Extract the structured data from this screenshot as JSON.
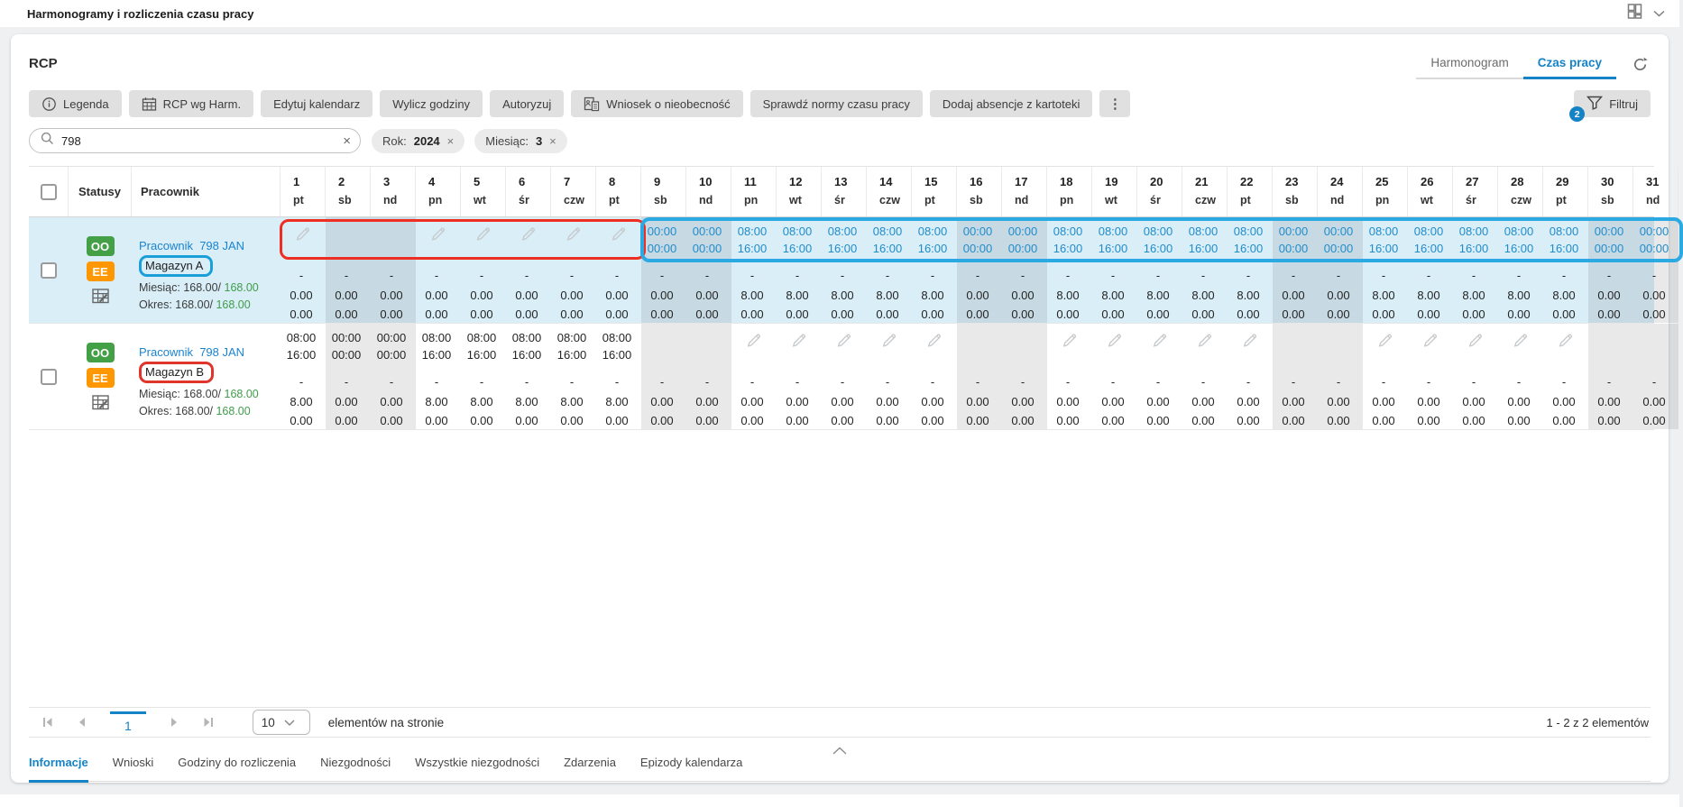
{
  "app": {
    "title": "Harmonogramy i rozliczenia czasu pracy"
  },
  "colors": {
    "accent": "#1583c5",
    "link": "#1b84d0",
    "time_blue": "#1f8ccc",
    "green": "#3f9c4b",
    "badge_oo": "#43a047",
    "badge_ee": "#ff9800",
    "annotation_red": "#ee2e22",
    "annotation_cyan": "#2aa9e2",
    "selected_row": "#d9eef7"
  },
  "icons": {
    "topbar_right": [
      "layout-grid-icon",
      "chevron-down-icon"
    ],
    "toolbar": [
      "info-icon",
      "calendar-icon",
      "absence-request-icon",
      "more-vertical-icon",
      "funnel-icon"
    ],
    "misc": [
      "refresh-icon",
      "search-icon",
      "clear-icon",
      "pencil-icon",
      "calendar-edit-icon",
      "collapse-chevron-icon"
    ]
  },
  "panel": {
    "title": "RCP",
    "view_tabs": [
      {
        "label": "Harmonogram",
        "active": false
      },
      {
        "label": "Czas pracy",
        "active": true
      }
    ],
    "toolbar": {
      "buttons": [
        {
          "label": "Legenda",
          "icon": "info-icon"
        },
        {
          "label": "RCP wg Harm.",
          "icon": "calendar-icon"
        },
        {
          "label": "Edytuj kalendarz"
        },
        {
          "label": "Wylicz godziny"
        },
        {
          "label": "Autoryzuj"
        },
        {
          "label": "Wniosek o nieobecność",
          "icon": "absence-request-icon"
        },
        {
          "label": "Sprawdź normy czasu pracy"
        },
        {
          "label": "Dodaj absencje z kartoteki"
        }
      ],
      "more": "⋮",
      "filter": {
        "label": "Filtruj",
        "badge": "2"
      }
    },
    "search": {
      "value": "798"
    },
    "filter_chips": [
      {
        "label": "Rok:",
        "value": "2024"
      },
      {
        "label": "Miesiąc:",
        "value": "3"
      }
    ]
  },
  "table": {
    "headers": {
      "statuses": "Statusy",
      "employee": "Pracownik"
    },
    "cell_dash": "-",
    "cell_bottom": "0.00",
    "days": [
      {
        "num": "1",
        "dow": "pt",
        "weekend": false
      },
      {
        "num": "2",
        "dow": "sb",
        "weekend": true
      },
      {
        "num": "3",
        "dow": "nd",
        "weekend": true
      },
      {
        "num": "4",
        "dow": "pn",
        "weekend": false
      },
      {
        "num": "5",
        "dow": "wt",
        "weekend": false
      },
      {
        "num": "6",
        "dow": "śr",
        "weekend": false
      },
      {
        "num": "7",
        "dow": "czw",
        "weekend": false
      },
      {
        "num": "8",
        "dow": "pt",
        "weekend": false
      },
      {
        "num": "9",
        "dow": "sb",
        "weekend": true
      },
      {
        "num": "10",
        "dow": "nd",
        "weekend": true
      },
      {
        "num": "11",
        "dow": "pn",
        "weekend": false
      },
      {
        "num": "12",
        "dow": "wt",
        "weekend": false
      },
      {
        "num": "13",
        "dow": "śr",
        "weekend": false
      },
      {
        "num": "14",
        "dow": "czw",
        "weekend": false
      },
      {
        "num": "15",
        "dow": "pt",
        "weekend": false
      },
      {
        "num": "16",
        "dow": "sb",
        "weekend": true
      },
      {
        "num": "17",
        "dow": "nd",
        "weekend": true
      },
      {
        "num": "18",
        "dow": "pn",
        "weekend": false
      },
      {
        "num": "19",
        "dow": "wt",
        "weekend": false
      },
      {
        "num": "20",
        "dow": "śr",
        "weekend": false
      },
      {
        "num": "21",
        "dow": "czw",
        "weekend": false
      },
      {
        "num": "22",
        "dow": "pt",
        "weekend": false
      },
      {
        "num": "23",
        "dow": "sb",
        "weekend": true
      },
      {
        "num": "24",
        "dow": "nd",
        "weekend": true
      },
      {
        "num": "25",
        "dow": "pn",
        "weekend": false
      },
      {
        "num": "26",
        "dow": "wt",
        "weekend": false
      },
      {
        "num": "27",
        "dow": "śr",
        "weekend": false
      },
      {
        "num": "28",
        "dow": "czw",
        "weekend": false
      },
      {
        "num": "29",
        "dow": "pt",
        "weekend": false
      },
      {
        "num": "30",
        "dow": "sb",
        "weekend": true
      },
      {
        "num": "31",
        "dow": "nd",
        "weekend": true
      }
    ],
    "rows": [
      {
        "selected": true,
        "time_color": "blue",
        "statuses": [
          {
            "code": "OO",
            "color": "#43a047"
          },
          {
            "code": "EE",
            "color": "#ff9800"
          }
        ],
        "employee": {
          "link": "Pracownik  798 JAN",
          "dept": "Magazyn A",
          "dept_highlight": "blue",
          "month_label": "Miesiąc: ",
          "month_done": "168.00/ ",
          "month_total": "168.00",
          "period_label": "Okres: ",
          "period_done": "168.00/ ",
          "period_total": "168.00"
        },
        "annotations": [
          {
            "type": "red",
            "from": 1,
            "to": 8
          },
          {
            "type": "cyan",
            "from": 9,
            "to": 31
          }
        ],
        "cells": [
          {
            "p": true,
            "n": "0.00"
          },
          {
            "p": false,
            "n": "0.00"
          },
          {
            "p": false,
            "n": "0.00"
          },
          {
            "p": true,
            "n": "0.00"
          },
          {
            "p": true,
            "n": "0.00"
          },
          {
            "p": true,
            "n": "0.00"
          },
          {
            "p": true,
            "n": "0.00"
          },
          {
            "p": true,
            "n": "0.00"
          },
          {
            "s": "00:00",
            "e": "00:00",
            "n": "0.00"
          },
          {
            "s": "00:00",
            "e": "00:00",
            "n": "0.00"
          },
          {
            "s": "08:00",
            "e": "16:00",
            "n": "8.00"
          },
          {
            "s": "08:00",
            "e": "16:00",
            "n": "8.00"
          },
          {
            "s": "08:00",
            "e": "16:00",
            "n": "8.00"
          },
          {
            "s": "08:00",
            "e": "16:00",
            "n": "8.00"
          },
          {
            "s": "08:00",
            "e": "16:00",
            "n": "8.00"
          },
          {
            "s": "00:00",
            "e": "00:00",
            "n": "0.00"
          },
          {
            "s": "00:00",
            "e": "00:00",
            "n": "0.00"
          },
          {
            "s": "08:00",
            "e": "16:00",
            "n": "8.00"
          },
          {
            "s": "08:00",
            "e": "16:00",
            "n": "8.00"
          },
          {
            "s": "08:00",
            "e": "16:00",
            "n": "8.00"
          },
          {
            "s": "08:00",
            "e": "16:00",
            "n": "8.00"
          },
          {
            "s": "08:00",
            "e": "16:00",
            "n": "8.00"
          },
          {
            "s": "00:00",
            "e": "00:00",
            "n": "0.00"
          },
          {
            "s": "00:00",
            "e": "00:00",
            "n": "0.00"
          },
          {
            "s": "08:00",
            "e": "16:00",
            "n": "8.00"
          },
          {
            "s": "08:00",
            "e": "16:00",
            "n": "8.00"
          },
          {
            "s": "08:00",
            "e": "16:00",
            "n": "8.00"
          },
          {
            "s": "08:00",
            "e": "16:00",
            "n": "8.00"
          },
          {
            "s": "08:00",
            "e": "16:00",
            "n": "8.00"
          },
          {
            "s": "00:00",
            "e": "00:00",
            "n": "0.00"
          },
          {
            "s": "00:00",
            "e": "00:00",
            "n": "0.00"
          }
        ]
      },
      {
        "selected": false,
        "time_color": "dark",
        "statuses": [
          {
            "code": "OO",
            "color": "#43a047"
          },
          {
            "code": "EE",
            "color": "#ff9800"
          }
        ],
        "employee": {
          "link": "Pracownik  798 JAN",
          "dept": "Magazyn B",
          "dept_highlight": "red",
          "month_label": "Miesiąc: ",
          "month_done": "168.00/ ",
          "month_total": "168.00",
          "period_label": "Okres: ",
          "period_done": "168.00/ ",
          "period_total": "168.00"
        },
        "annotations": [],
        "cells": [
          {
            "s": "08:00",
            "e": "16:00",
            "n": "8.00"
          },
          {
            "s": "00:00",
            "e": "00:00",
            "n": "0.00"
          },
          {
            "s": "00:00",
            "e": "00:00",
            "n": "0.00"
          },
          {
            "s": "08:00",
            "e": "16:00",
            "n": "8.00"
          },
          {
            "s": "08:00",
            "e": "16:00",
            "n": "8.00"
          },
          {
            "s": "08:00",
            "e": "16:00",
            "n": "8.00"
          },
          {
            "s": "08:00",
            "e": "16:00",
            "n": "8.00"
          },
          {
            "s": "08:00",
            "e": "16:00",
            "n": "8.00"
          },
          {
            "p": false,
            "n": "0.00"
          },
          {
            "p": false,
            "n": "0.00"
          },
          {
            "p": true,
            "n": "0.00"
          },
          {
            "p": true,
            "n": "0.00"
          },
          {
            "p": true,
            "n": "0.00"
          },
          {
            "p": true,
            "n": "0.00"
          },
          {
            "p": true,
            "n": "0.00"
          },
          {
            "p": false,
            "n": "0.00"
          },
          {
            "p": false,
            "n": "0.00"
          },
          {
            "p": true,
            "n": "0.00"
          },
          {
            "p": true,
            "n": "0.00"
          },
          {
            "p": true,
            "n": "0.00"
          },
          {
            "p": true,
            "n": "0.00"
          },
          {
            "p": true,
            "n": "0.00"
          },
          {
            "p": false,
            "n": "0.00"
          },
          {
            "p": false,
            "n": "0.00"
          },
          {
            "p": true,
            "n": "0.00"
          },
          {
            "p": true,
            "n": "0.00"
          },
          {
            "p": true,
            "n": "0.00"
          },
          {
            "p": true,
            "n": "0.00"
          },
          {
            "p": true,
            "n": "0.00"
          },
          {
            "p": false,
            "n": "0.00"
          },
          {
            "p": false,
            "n": "0.00"
          }
        ]
      }
    ]
  },
  "pagination": {
    "page": "1",
    "page_size": "10",
    "page_size_label": "elementów na stronie",
    "summary": "1 - 2 z 2 elementów"
  },
  "bottom_tabs": [
    {
      "label": "Informacje",
      "active": true
    },
    {
      "label": "Wnioski",
      "active": false
    },
    {
      "label": "Godziny do rozliczenia",
      "active": false
    },
    {
      "label": "Niezgodności",
      "active": false
    },
    {
      "label": "Wszystkie niezgodności",
      "active": false
    },
    {
      "label": "Zdarzenia",
      "active": false
    },
    {
      "label": "Epizody kalendarza",
      "active": false
    }
  ]
}
